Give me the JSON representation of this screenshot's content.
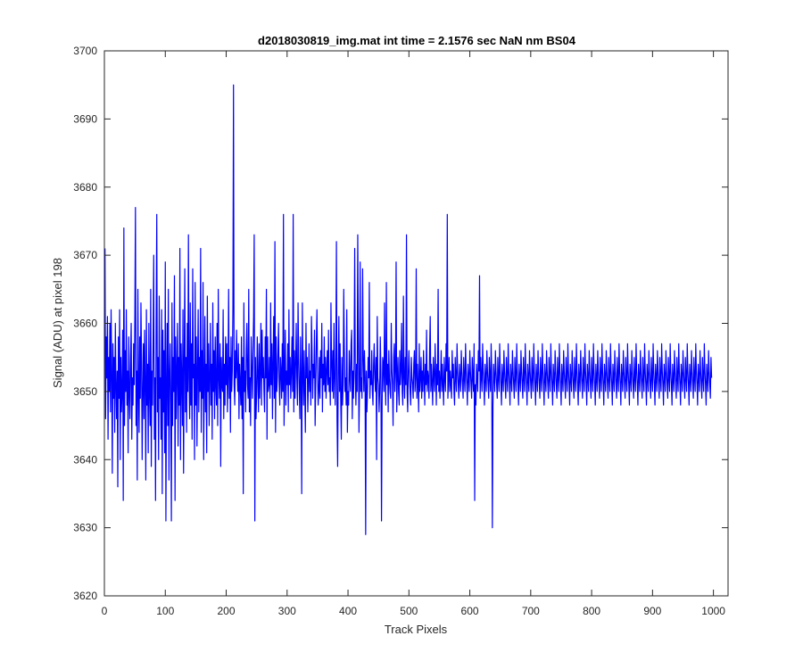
{
  "chart_data": {
    "type": "line",
    "title": "d2018030819_img.mat int time = 2.1576 sec  NaN nm BS04",
    "xlabel": "Track Pixels",
    "ylabel": "Signal (ADU) at pixel 198",
    "xlim": [
      0,
      1024
    ],
    "ylim": [
      3620,
      3700
    ],
    "xticks": [
      0,
      100,
      200,
      300,
      400,
      500,
      600,
      700,
      800,
      900,
      1000
    ],
    "yticks": [
      3620,
      3630,
      3640,
      3650,
      3660,
      3670,
      3680,
      3690,
      3700
    ],
    "grid": false,
    "line_color": "#0000ff",
    "series": [
      {
        "x_start": 1,
        "x_step": 1,
        "values": [
          3671,
          3646,
          3658,
          3652,
          3661,
          3643,
          3655,
          3650,
          3660,
          3647,
          3662,
          3653,
          3638,
          3657,
          3649,
          3655,
          3644,
          3660,
          3651,
          3646,
          3653,
          3636,
          3658,
          3649,
          3662,
          3640,
          3655,
          3647,
          3650,
          3659,
          3634,
          3674,
          3645,
          3656,
          3650,
          3662,
          3648,
          3653,
          3641,
          3658,
          3650,
          3646,
          3655,
          3660,
          3643,
          3652,
          3648,
          3657,
          3651,
          3661,
          3677,
          3645,
          3653,
          3637,
          3665,
          3650,
          3644,
          3658,
          3649,
          3663,
          3655,
          3640,
          3650,
          3657,
          3646,
          3659,
          3651,
          3637,
          3662,
          3648,
          3654,
          3641,
          3660,
          3650,
          3645,
          3665,
          3639,
          3653,
          3648,
          3658,
          3670,
          3643,
          3652,
          3634,
          3660,
          3676,
          3647,
          3655,
          3640,
          3664,
          3649,
          3652,
          3643,
          3662,
          3635,
          3659,
          3647,
          3656,
          3641,
          3669,
          3631,
          3650,
          3660,
          3645,
          3665,
          3637,
          3652,
          3657,
          3648,
          3631,
          3663,
          3645,
          3655,
          3650,
          3667,
          3634,
          3658,
          3646,
          3653,
          3660,
          3642,
          3655,
          3648,
          3671,
          3640,
          3657,
          3652,
          3645,
          3662,
          3638,
          3654,
          3668,
          3647,
          3655,
          3644,
          3660,
          3650,
          3673,
          3652,
          3646,
          3663,
          3648,
          3657,
          3643,
          3668,
          3652,
          3654,
          3640,
          3666,
          3648,
          3658,
          3642,
          3653,
          3662,
          3647,
          3655,
          3650,
          3671,
          3644,
          3656,
          3649,
          3666,
          3640,
          3651,
          3661,
          3647,
          3654,
          3641,
          3664,
          3650,
          3657,
          3645,
          3652,
          3660,
          3648,
          3654,
          3643,
          3663,
          3650,
          3656,
          3646,
          3658,
          3651,
          3648,
          3660,
          3645,
          3665,
          3652,
          3649,
          3657,
          3639,
          3655,
          3651,
          3650,
          3662,
          3646,
          3654,
          3648,
          3658,
          3651,
          3657,
          3647,
          3652,
          3665,
          3649,
          3655,
          3644,
          3658,
          3650,
          3653,
          3662,
          3695,
          3651,
          3648,
          3656,
          3652,
          3659,
          3653,
          3650,
          3657,
          3646,
          3654,
          3651,
          3648,
          3658,
          3646,
          3655,
          3635,
          3663,
          3650,
          3653,
          3647,
          3656,
          3660,
          3651,
          3649,
          3665,
          3647,
          3652,
          3645,
          3658,
          3653,
          3649,
          3656,
          3661,
          3673,
          3631,
          3655,
          3646,
          3650,
          3658,
          3652,
          3647,
          3657,
          3649,
          3653,
          3660,
          3648,
          3659,
          3652,
          3655,
          3650,
          3647,
          3658,
          3652,
          3665,
          3643,
          3658,
          3650,
          3651,
          3655,
          3649,
          3663,
          3651,
          3657,
          3646,
          3654,
          3661,
          3649,
          3672,
          3644,
          3658,
          3650,
          3652,
          3656,
          3660,
          3651,
          3648,
          3655,
          3653,
          3649,
          3657,
          3650,
          3676,
          3645,
          3652,
          3659,
          3648,
          3653,
          3651,
          3657,
          3647,
          3662,
          3651,
          3655,
          3649,
          3653,
          3658,
          3650,
          3676,
          3647,
          3656,
          3649,
          3654,
          3660,
          3652,
          3648,
          3663,
          3655,
          3650,
          3646,
          3658,
          3652,
          3635,
          3663,
          3653,
          3648,
          3656,
          3650,
          3644,
          3660,
          3652,
          3655,
          3647,
          3651,
          3657,
          3650,
          3653,
          3648,
          3661,
          3656,
          3649,
          3654,
          3652,
          3659,
          3645,
          3651,
          3657,
          3662,
          3653,
          3648,
          3650,
          3655,
          3649,
          3656,
          3652,
          3660,
          3647,
          3654,
          3651,
          3658,
          3650,
          3655,
          3649,
          3653,
          3656,
          3651,
          3659,
          3650,
          3652,
          3648,
          3663,
          3654,
          3650,
          3656,
          3649,
          3660,
          3652,
          3648,
          3655,
          3672,
          3646,
          3639,
          3653,
          3661,
          3650,
          3657,
          3649,
          3643,
          3655,
          3648,
          3651,
          3665,
          3656,
          3650,
          3652,
          3648,
          3662,
          3644,
          3650,
          3648,
          3656,
          3652,
          3650,
          3657,
          3659,
          3646,
          3653,
          3649,
          3655,
          3671,
          3652,
          3648,
          3654,
          3650,
          3673,
          3657,
          3644,
          3651,
          3669,
          3650,
          3652,
          3649,
          3668,
          3655,
          3650,
          3656,
          3652,
          3629,
          3653,
          3647,
          3650,
          3655,
          3652,
          3666,
          3649,
          3653,
          3651,
          3656,
          3650,
          3648,
          3654,
          3657,
          3652,
          3650,
          3655,
          3640,
          3661,
          3652,
          3651,
          3647,
          3650,
          3658,
          3653,
          3631,
          3648,
          3655,
          3654,
          3650,
          3663,
          3652,
          3648,
          3666,
          3651,
          3654,
          3647,
          3656,
          3652,
          3650,
          3649,
          3660,
          3653,
          3651,
          3645,
          3655,
          3657,
          3650,
          3653,
          3669,
          3647,
          3652,
          3655,
          3650,
          3648,
          3656,
          3651,
          3653,
          3660,
          3650,
          3648,
          3664,
          3652,
          3649,
          3655,
          3651,
          3673,
          3650,
          3647,
          3653,
          3656,
          3652,
          3650,
          3648,
          3655,
          3652,
          3651,
          3649,
          3654,
          3656,
          3650,
          3652,
          3668,
          3649,
          3654,
          3651,
          3647,
          3657,
          3650,
          3652,
          3655,
          3649,
          3653,
          3650,
          3656,
          3652,
          3648,
          3654,
          3651,
          3659,
          3650,
          3653,
          3652,
          3649,
          3656,
          3661,
          3650,
          3654,
          3651,
          3648,
          3655,
          3652,
          3650,
          3657,
          3653,
          3648,
          3654,
          3651,
          3665,
          3650,
          3653,
          3649,
          3652,
          3656,
          3650,
          3654,
          3651,
          3648,
          3655,
          3652,
          3650,
          3657,
          3653,
          3676,
          3649,
          3652,
          3655,
          3650,
          3653,
          3651,
          3649,
          3656,
          3652,
          3654,
          3650,
          3648,
          3655,
          3652,
          3650,
          3657,
          3653,
          3651,
          3649,
          3654,
          3652,
          3650,
          3656,
          3653,
          3651,
          3649,
          3655,
          3652,
          3650,
          3657,
          3653,
          3651,
          3648,
          3654,
          3652,
          3650,
          3656,
          3653,
          3651,
          3649,
          3655,
          3652,
          3650,
          3657,
          3634,
          3651,
          3648,
          3654,
          3652,
          3650,
          3656,
          3653,
          3667,
          3649,
          3655,
          3652,
          3650,
          3657,
          3653,
          3651,
          3648,
          3654,
          3652,
          3650,
          3656,
          3653,
          3651,
          3649,
          3655,
          3652,
          3650,
          3657,
          3653,
          3630,
          3648,
          3654,
          3652,
          3650,
          3656,
          3653,
          3651,
          3649,
          3655,
          3652,
          3650,
          3657,
          3653,
          3651,
          3648,
          3654,
          3652,
          3650,
          3656,
          3653,
          3651,
          3649,
          3655,
          3652,
          3650,
          3657,
          3653,
          3651,
          3648,
          3654,
          3652,
          3650,
          3656,
          3653,
          3651,
          3649,
          3655,
          3652,
          3650,
          3657,
          3653,
          3651,
          3648,
          3654,
          3652,
          3650,
          3656,
          3653,
          3651,
          3649,
          3655,
          3652,
          3650,
          3657,
          3653,
          3651,
          3648,
          3654,
          3652,
          3650,
          3656,
          3653,
          3651,
          3649,
          3655,
          3652,
          3650,
          3657,
          3653,
          3651,
          3648,
          3654,
          3652,
          3650,
          3656,
          3653,
          3651,
          3649,
          3655,
          3652,
          3650,
          3657,
          3653,
          3651,
          3648,
          3654,
          3652,
          3650,
          3656,
          3653,
          3651,
          3649,
          3655,
          3652,
          3650,
          3657,
          3653,
          3651,
          3648,
          3654,
          3652,
          3650,
          3656,
          3653,
          3651,
          3649,
          3655,
          3652,
          3650,
          3657,
          3653,
          3651,
          3648,
          3654,
          3652,
          3650,
          3656,
          3653,
          3651,
          3649,
          3655,
          3652,
          3650,
          3657,
          3653,
          3651,
          3648,
          3654,
          3652,
          3650,
          3656,
          3653,
          3651,
          3649,
          3655,
          3652,
          3650,
          3657,
          3653,
          3651,
          3648,
          3654,
          3652,
          3650,
          3656,
          3653,
          3651,
          3649,
          3655,
          3652,
          3650,
          3657,
          3653,
          3651,
          3648,
          3654,
          3652,
          3650,
          3656,
          3653,
          3651,
          3649,
          3655,
          3652,
          3650,
          3657,
          3653,
          3651,
          3648,
          3654,
          3652,
          3650,
          3656,
          3653,
          3651,
          3649,
          3655,
          3652,
          3650,
          3657,
          3653,
          3651,
          3648,
          3654,
          3652,
          3650,
          3656,
          3653,
          3651,
          3649,
          3655,
          3652,
          3650,
          3657,
          3653,
          3651,
          3648,
          3654,
          3652,
          3650,
          3656,
          3653,
          3651,
          3649,
          3655,
          3652,
          3650,
          3657,
          3653,
          3651,
          3648,
          3654,
          3652,
          3650,
          3656,
          3653,
          3651,
          3649,
          3655,
          3652,
          3650,
          3657,
          3653,
          3651,
          3648,
          3654,
          3652,
          3650,
          3656,
          3653,
          3651,
          3649,
          3655,
          3652,
          3650,
          3657,
          3653,
          3651,
          3648,
          3654,
          3652,
          3650,
          3656,
          3653,
          3651,
          3649,
          3655,
          3652,
          3650,
          3657,
          3653,
          3651,
          3648,
          3654,
          3652,
          3650,
          3656,
          3653,
          3651,
          3649,
          3655,
          3652,
          3650,
          3657,
          3653,
          3651,
          3648,
          3654,
          3652,
          3650,
          3656,
          3653,
          3651,
          3649,
          3655,
          3652,
          3650,
          3657,
          3653,
          3651,
          3648,
          3654,
          3652,
          3650,
          3656,
          3653,
          3651,
          3649,
          3655,
          3652,
          3650,
          3657,
          3653,
          3651,
          3648,
          3654,
          3652,
          3650,
          3656,
          3653,
          3651,
          3649,
          3655,
          3652,
          3650,
          3657,
          3653,
          3651,
          3648,
          3654,
          3652,
          3650,
          3656,
          3653,
          3651,
          3649,
          3655,
          3652,
          3650,
          3657,
          3653,
          3651,
          3648,
          3654,
          3652,
          3650,
          3656,
          3653,
          3651,
          3649,
          3655,
          3652,
          3650,
          3657,
          3653,
          3651,
          3648,
          3654,
          3652,
          3650,
          3656,
          3653,
          3651,
          3649,
          3655,
          3652,
          3650,
          3657,
          3653,
          3651,
          3648,
          3654,
          3652,
          3650,
          3656,
          3653,
          3651,
          3649,
          3655,
          3652
        ]
      }
    ]
  }
}
